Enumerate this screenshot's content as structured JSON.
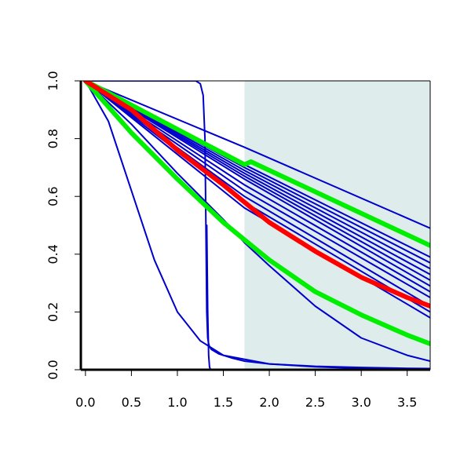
{
  "chart_data": {
    "type": "line",
    "title": "",
    "xlabel": "",
    "ylabel": "",
    "xlim": [
      -0.05,
      3.75
    ],
    "ylim": [
      0,
      1
    ],
    "x_ticks": [
      "0.0",
      "0.5",
      "1.0",
      "1.5",
      "2.0",
      "2.5",
      "3.0",
      "3.5"
    ],
    "y_ticks": [
      "0.0",
      "0.2",
      "0.4",
      "0.6",
      "0.8",
      "1.0"
    ],
    "grid": false,
    "legend": "none",
    "shaded_region": {
      "x_from": 1.73,
      "x_to": 3.75,
      "color": "#deecec"
    },
    "series": [
      {
        "color": "#0000cc",
        "width": 2,
        "x": [
          0,
          1.73,
          3.75
        ],
        "y": [
          1.0,
          0.77,
          0.49
        ]
      },
      {
        "color": "#0000cc",
        "width": 2,
        "x": [
          0,
          1.73,
          3.75
        ],
        "y": [
          1.0,
          0.71,
          0.39
        ]
      },
      {
        "color": "#0000cc",
        "width": 2,
        "x": [
          0,
          1.73,
          3.75
        ],
        "y": [
          1.0,
          0.7,
          0.37
        ]
      },
      {
        "color": "#0000cc",
        "width": 2,
        "x": [
          0,
          1.73,
          3.75
        ],
        "y": [
          1.0,
          0.69,
          0.35
        ]
      },
      {
        "color": "#0000cc",
        "width": 2,
        "x": [
          0,
          1.73,
          3.75
        ],
        "y": [
          1.0,
          0.68,
          0.33
        ]
      },
      {
        "color": "#0000cc",
        "width": 2,
        "x": [
          0,
          1.73,
          3.75
        ],
        "y": [
          1.0,
          0.67,
          0.31
        ]
      },
      {
        "color": "#0000cc",
        "width": 2,
        "x": [
          0,
          1.73,
          3.75
        ],
        "y": [
          1.0,
          0.66,
          0.29
        ]
      },
      {
        "color": "#0000cc",
        "width": 2,
        "x": [
          0,
          1.73,
          3.75
        ],
        "y": [
          1.0,
          0.64,
          0.27
        ]
      },
      {
        "color": "#0000cc",
        "width": 2,
        "x": [
          0,
          1.73,
          3.75
        ],
        "y": [
          1.0,
          0.62,
          0.25
        ]
      },
      {
        "color": "#0000cc",
        "width": 2,
        "x": [
          0,
          1.73,
          3.75
        ],
        "y": [
          1.0,
          0.6,
          0.22
        ]
      },
      {
        "color": "#0000cc",
        "width": 2,
        "x": [
          0,
          1.73,
          3.75
        ],
        "y": [
          1.0,
          0.58,
          0.2
        ]
      },
      {
        "color": "#0000cc",
        "width": 2,
        "x": [
          0,
          1.73,
          3.75
        ],
        "y": [
          1.0,
          0.56,
          0.18
        ]
      },
      {
        "color": "#0000cc",
        "width": 2,
        "x": [
          0,
          0.5,
          1.0,
          1.5,
          1.73,
          2.0,
          2.5,
          3.0,
          3.5,
          3.75
        ],
        "y": [
          1.0,
          0.85,
          0.68,
          0.52,
          0.44,
          0.36,
          0.22,
          0.11,
          0.05,
          0.03
        ]
      },
      {
        "color": "#0000cc",
        "width": 2,
        "x": [
          0,
          0.25,
          0.5,
          0.75,
          1.0,
          1.25,
          1.5,
          2.0,
          2.5,
          3.0,
          3.5,
          3.75
        ],
        "y": [
          1.0,
          0.86,
          0.62,
          0.38,
          0.2,
          0.1,
          0.05,
          0.02,
          0.01,
          0.005,
          0.0,
          0.0
        ]
      },
      {
        "color": "#0000cc",
        "width": 2,
        "x": [
          0,
          1.2,
          1.25,
          1.28,
          1.3,
          1.31,
          1.32,
          1.33,
          1.34,
          1.35,
          1.36,
          1.37,
          1.45,
          1.6,
          1.73,
          2.0,
          2.5,
          3.0,
          3.5,
          3.75
        ],
        "y": [
          1.0,
          1.0,
          0.99,
          0.95,
          0.8,
          0.5,
          0.2,
          0.11,
          0.09,
          0.08,
          0.075,
          0.07,
          0.055,
          0.04,
          0.03,
          0.02,
          0.012,
          0.008,
          0.005,
          0.004
        ]
      },
      {
        "color": "#00ee00",
        "width": 6,
        "x": [
          0,
          1.73,
          1.8,
          3.75
        ],
        "y": [
          1.0,
          0.71,
          0.72,
          0.43
        ]
      },
      {
        "color": "#00ee00",
        "width": 6,
        "x": [
          0,
          0.5,
          1.0,
          1.5,
          1.73,
          2.0,
          2.5,
          3.0,
          3.5,
          3.75
        ],
        "y": [
          1.0,
          0.82,
          0.66,
          0.51,
          0.45,
          0.38,
          0.27,
          0.19,
          0.12,
          0.09
        ]
      },
      {
        "color": "#ff0000",
        "width": 6,
        "x": [
          0,
          0.5,
          1.0,
          1.5,
          1.73,
          2.0,
          2.5,
          3.0,
          3.5,
          3.75
        ],
        "y": [
          1.0,
          0.9,
          0.76,
          0.64,
          0.58,
          0.51,
          0.41,
          0.32,
          0.25,
          0.22
        ]
      },
      {
        "color": "#0000cc",
        "width": 2,
        "x": [
          1.32,
          1.33,
          1.34,
          1.35,
          1.36,
          1.38
        ],
        "y": [
          0.5,
          0.2,
          0.05,
          0.01,
          0.0,
          0.0
        ]
      }
    ]
  }
}
